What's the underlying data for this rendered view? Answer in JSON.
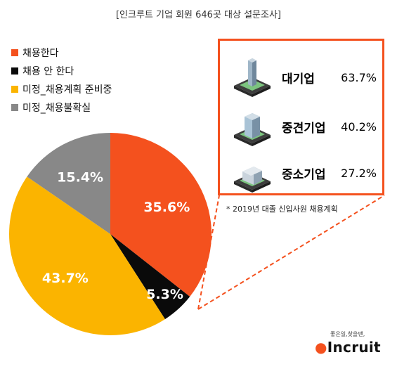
{
  "subtitle": "[인크루트 기업 회원 646곳 대상 설문조사]",
  "chart_data": {
    "type": "pie",
    "categories": [
      "채용한다",
      "채용 안 한다",
      "미정_채용계획 준비중",
      "미정_채용불확실"
    ],
    "values": [
      35.6,
      5.3,
      43.7,
      15.4
    ],
    "labels": [
      "35.6%",
      "5.3%",
      "43.7%",
      "15.4%"
    ],
    "colors": [
      "#f4511e",
      "#0a0a0a",
      "#fbb400",
      "#888888"
    ],
    "legend_placement": "top-left"
  },
  "callout": {
    "rows": [
      {
        "name": "대기업",
        "value": "63.7%",
        "icon": "tall-building-icon"
      },
      {
        "name": "중견기업",
        "value": "40.2%",
        "icon": "mid-building-icon"
      },
      {
        "name": "중소기업",
        "value": "27.2%",
        "icon": "small-building-icon"
      }
    ],
    "border_color": "#f4511e"
  },
  "footnote": "* 2019년 대졸 신입사원 채용계획",
  "logo": {
    "tagline": "좋은일,찾을땐,",
    "name": "Incruit"
  }
}
